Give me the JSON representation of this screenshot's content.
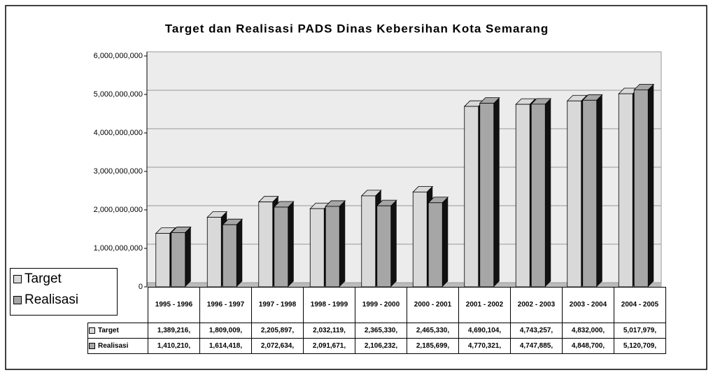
{
  "chart_data": {
    "type": "bar",
    "title": "Target dan Realisasi PADS Dinas Kebersihan Kota Semarang",
    "categories": [
      "1995 - 1996",
      "1996 - 1997",
      "1997 - 1998",
      "1998 - 1999",
      "1999 - 2000",
      "2000 - 2001",
      "2001 - 2002",
      "2002 - 2003",
      "2003 - 2004",
      "2004 - 2005"
    ],
    "series": [
      {
        "name": "Target",
        "color": "#d9d9d9",
        "values": [
          1389216000,
          1809009000,
          2205897000,
          2032119000,
          2365330000,
          2465330000,
          4690104000,
          4743257000,
          4832000000,
          5017979000
        ],
        "value_labels": [
          "1,389,216,",
          "1,809,009,",
          "2,205,897,",
          "2,032,119,",
          "2,365,330,",
          "2,465,330,",
          "4,690,104,",
          "4,743,257,",
          "4,832,000,",
          "5,017,979,"
        ]
      },
      {
        "name": "Realisasi",
        "color": "#a6a6a6",
        "values": [
          1410210000,
          1614418000,
          2072634000,
          2091671000,
          2106232000,
          2185699000,
          4770321000,
          4747885000,
          4848700000,
          5120709000
        ],
        "value_labels": [
          "1,410,210,",
          "1,614,418,",
          "2,072,634,",
          "2,091,671,",
          "2,106,232,",
          "2,185,699,",
          "4,770,321,",
          "4,747,885,",
          "4,848,700,",
          "5,120,709,"
        ]
      }
    ],
    "ylim": [
      0,
      6000000000
    ],
    "yticks": [
      0,
      {
        "value": 1000000000,
        "label": "1,000,000,000"
      },
      {
        "value": 2000000000,
        "label": "2,000,000,000"
      },
      {
        "value": 3000000000,
        "label": "3,000,000,000"
      },
      {
        "value": 4000000000,
        "label": "4,000,000,000"
      },
      {
        "value": 5000000000,
        "label": "5,000,000,000"
      },
      {
        "value": 6000000000,
        "label": "6,000,000,000"
      }
    ],
    "grid": true
  }
}
